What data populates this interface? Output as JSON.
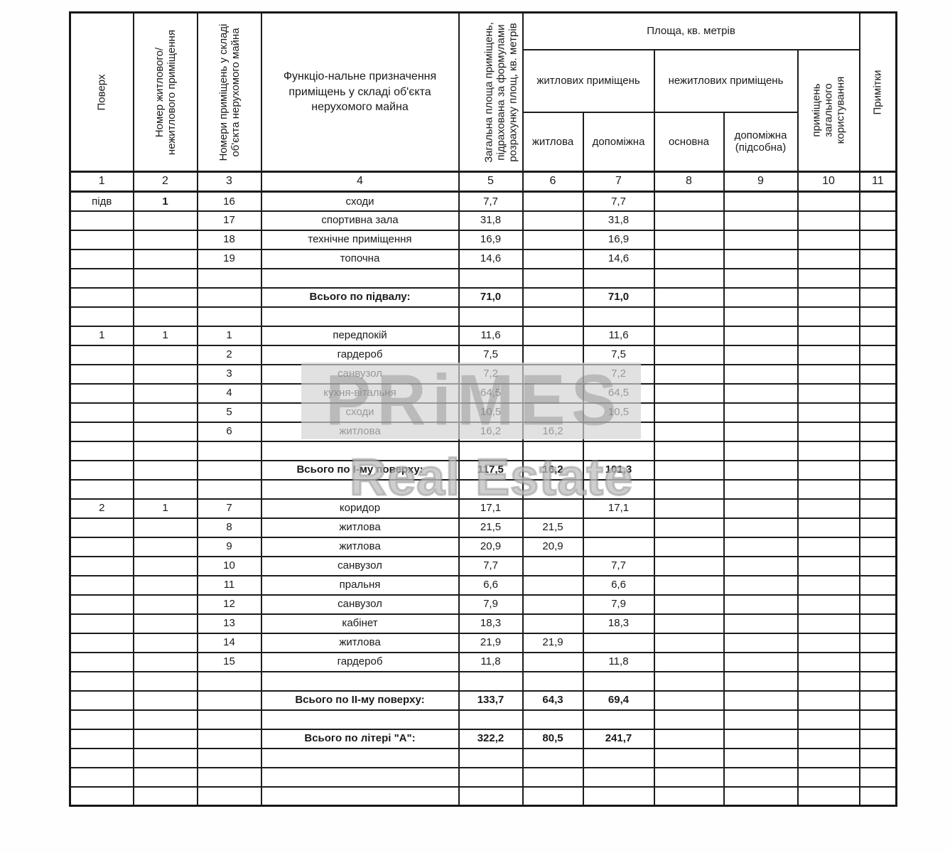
{
  "document": {
    "type": "Таблиця площ приміщень (технічна інвентаризація)",
    "language": "uk"
  },
  "header": {
    "col1": "Поверх",
    "col2": "Номер житлового/ нежитлового приміщення",
    "col3": "Номери приміщень у складі об'єкта нерухомого майна",
    "col4": "Функціо-нальне призначення приміщень у складі об'єкта нерухомого майна",
    "col5": "Загальна площа приміщень, підрахована за формулами розрахунку площ, кв. метрів",
    "area_group": "Площа, кв. метрів",
    "residential_group": "житлових приміщень",
    "nonresidential_group": "нежитлових приміщень",
    "col6": "житлова",
    "col7": "допоміжна",
    "col8": "основна",
    "col9": "допоміжна (підсобна)",
    "col10": "приміщень загального користування",
    "col11": "Примітки",
    "numbers": [
      "1",
      "2",
      "3",
      "4",
      "5",
      "6",
      "7",
      "8",
      "9",
      "10",
      "11"
    ]
  },
  "rows": [
    {
      "c1": "підв",
      "c2": "1",
      "c2_bold": true,
      "c3": "16",
      "label": "сходи",
      "v5": "7,7",
      "v6": "",
      "v7": "7,7"
    },
    {
      "c3": "17",
      "label": "спортивна зала",
      "v5": "31,8",
      "v6": "",
      "v7": "31,8"
    },
    {
      "c3": "18",
      "label": "технічне приміщення",
      "v5": "16,9",
      "v6": "",
      "v7": "16,9"
    },
    {
      "c3": "19",
      "label": "топочна",
      "v5": "14,6",
      "v6": "",
      "v7": "14,6"
    },
    {},
    {
      "label": "Всього по підвалу:",
      "v5": "71,0",
      "v6": "",
      "v7": "71,0",
      "bold": true
    },
    {},
    {
      "c1": "1",
      "c2": "1",
      "c3": "1",
      "label": "передпокій",
      "v5": "11,6",
      "v6": "",
      "v7": "11,6"
    },
    {
      "c3": "2",
      "label": "гардероб",
      "v5": "7,5",
      "v6": "",
      "v7": "7,5"
    },
    {
      "c3": "3",
      "label": "санвузол",
      "v5": "7,2",
      "v6": "",
      "v7": "7,2"
    },
    {
      "c3": "4",
      "label": "кухня-вітальня",
      "v5": "64,5",
      "v6": "",
      "v7": "64,5"
    },
    {
      "c3": "5",
      "label": "сходи",
      "v5": "10,5",
      "v6": "",
      "v7": "10,5"
    },
    {
      "c3": "6",
      "label": "житлова",
      "v5": "16,2",
      "v6": "16,2",
      "v7": ""
    },
    {},
    {
      "label": "Всього по І-му поверху:",
      "v5": "117,5",
      "v6": "16,2",
      "v7": "101,3",
      "bold": true
    },
    {},
    {
      "c1": "2",
      "c2": "1",
      "c3": "7",
      "label": "коридор",
      "v5": "17,1",
      "v6": "",
      "v7": "17,1"
    },
    {
      "c3": "8",
      "label": "житлова",
      "v5": "21,5",
      "v6": "21,5",
      "v7": ""
    },
    {
      "c3": "9",
      "label": "житлова",
      "v5": "20,9",
      "v6": "20,9",
      "v7": ""
    },
    {
      "c3": "10",
      "label": "санвузол",
      "v5": "7,7",
      "v6": "",
      "v7": "7,7"
    },
    {
      "c3": "11",
      "label": "пральня",
      "v5": "6,6",
      "v6": "",
      "v7": "6,6"
    },
    {
      "c3": "12",
      "label": "санвузол",
      "v5": "7,9",
      "v6": "",
      "v7": "7,9"
    },
    {
      "c3": "13",
      "label": "кабінет",
      "v5": "18,3",
      "v6": "",
      "v7": "18,3"
    },
    {
      "c3": "14",
      "label": "житлова",
      "v5": "21,9",
      "v6": "21,9",
      "v7": ""
    },
    {
      "c3": "15",
      "label": "гардероб",
      "v5": "11,8",
      "v6": "",
      "v7": "11,8"
    },
    {},
    {
      "label": "Всього по ІІ-му поверху:",
      "v5": "133,7",
      "v6": "64,3",
      "v7": "69,4",
      "bold": true
    },
    {},
    {
      "label": "Всього по літері \"А\":",
      "v5": "322,2",
      "v6": "80,5",
      "v7": "241,7",
      "bold": true
    },
    {},
    {},
    {}
  ],
  "watermark": {
    "logo_letters": [
      "P",
      "R",
      "i",
      "M",
      "E",
      "S"
    ],
    "subtitle": "Real Estate"
  },
  "colors": {
    "table_border": "#1c1c1c",
    "text": "#1a1a1a",
    "watermark_band": "#d3d3d3",
    "watermark_text": "#808080",
    "page_background": "#fefefe"
  }
}
